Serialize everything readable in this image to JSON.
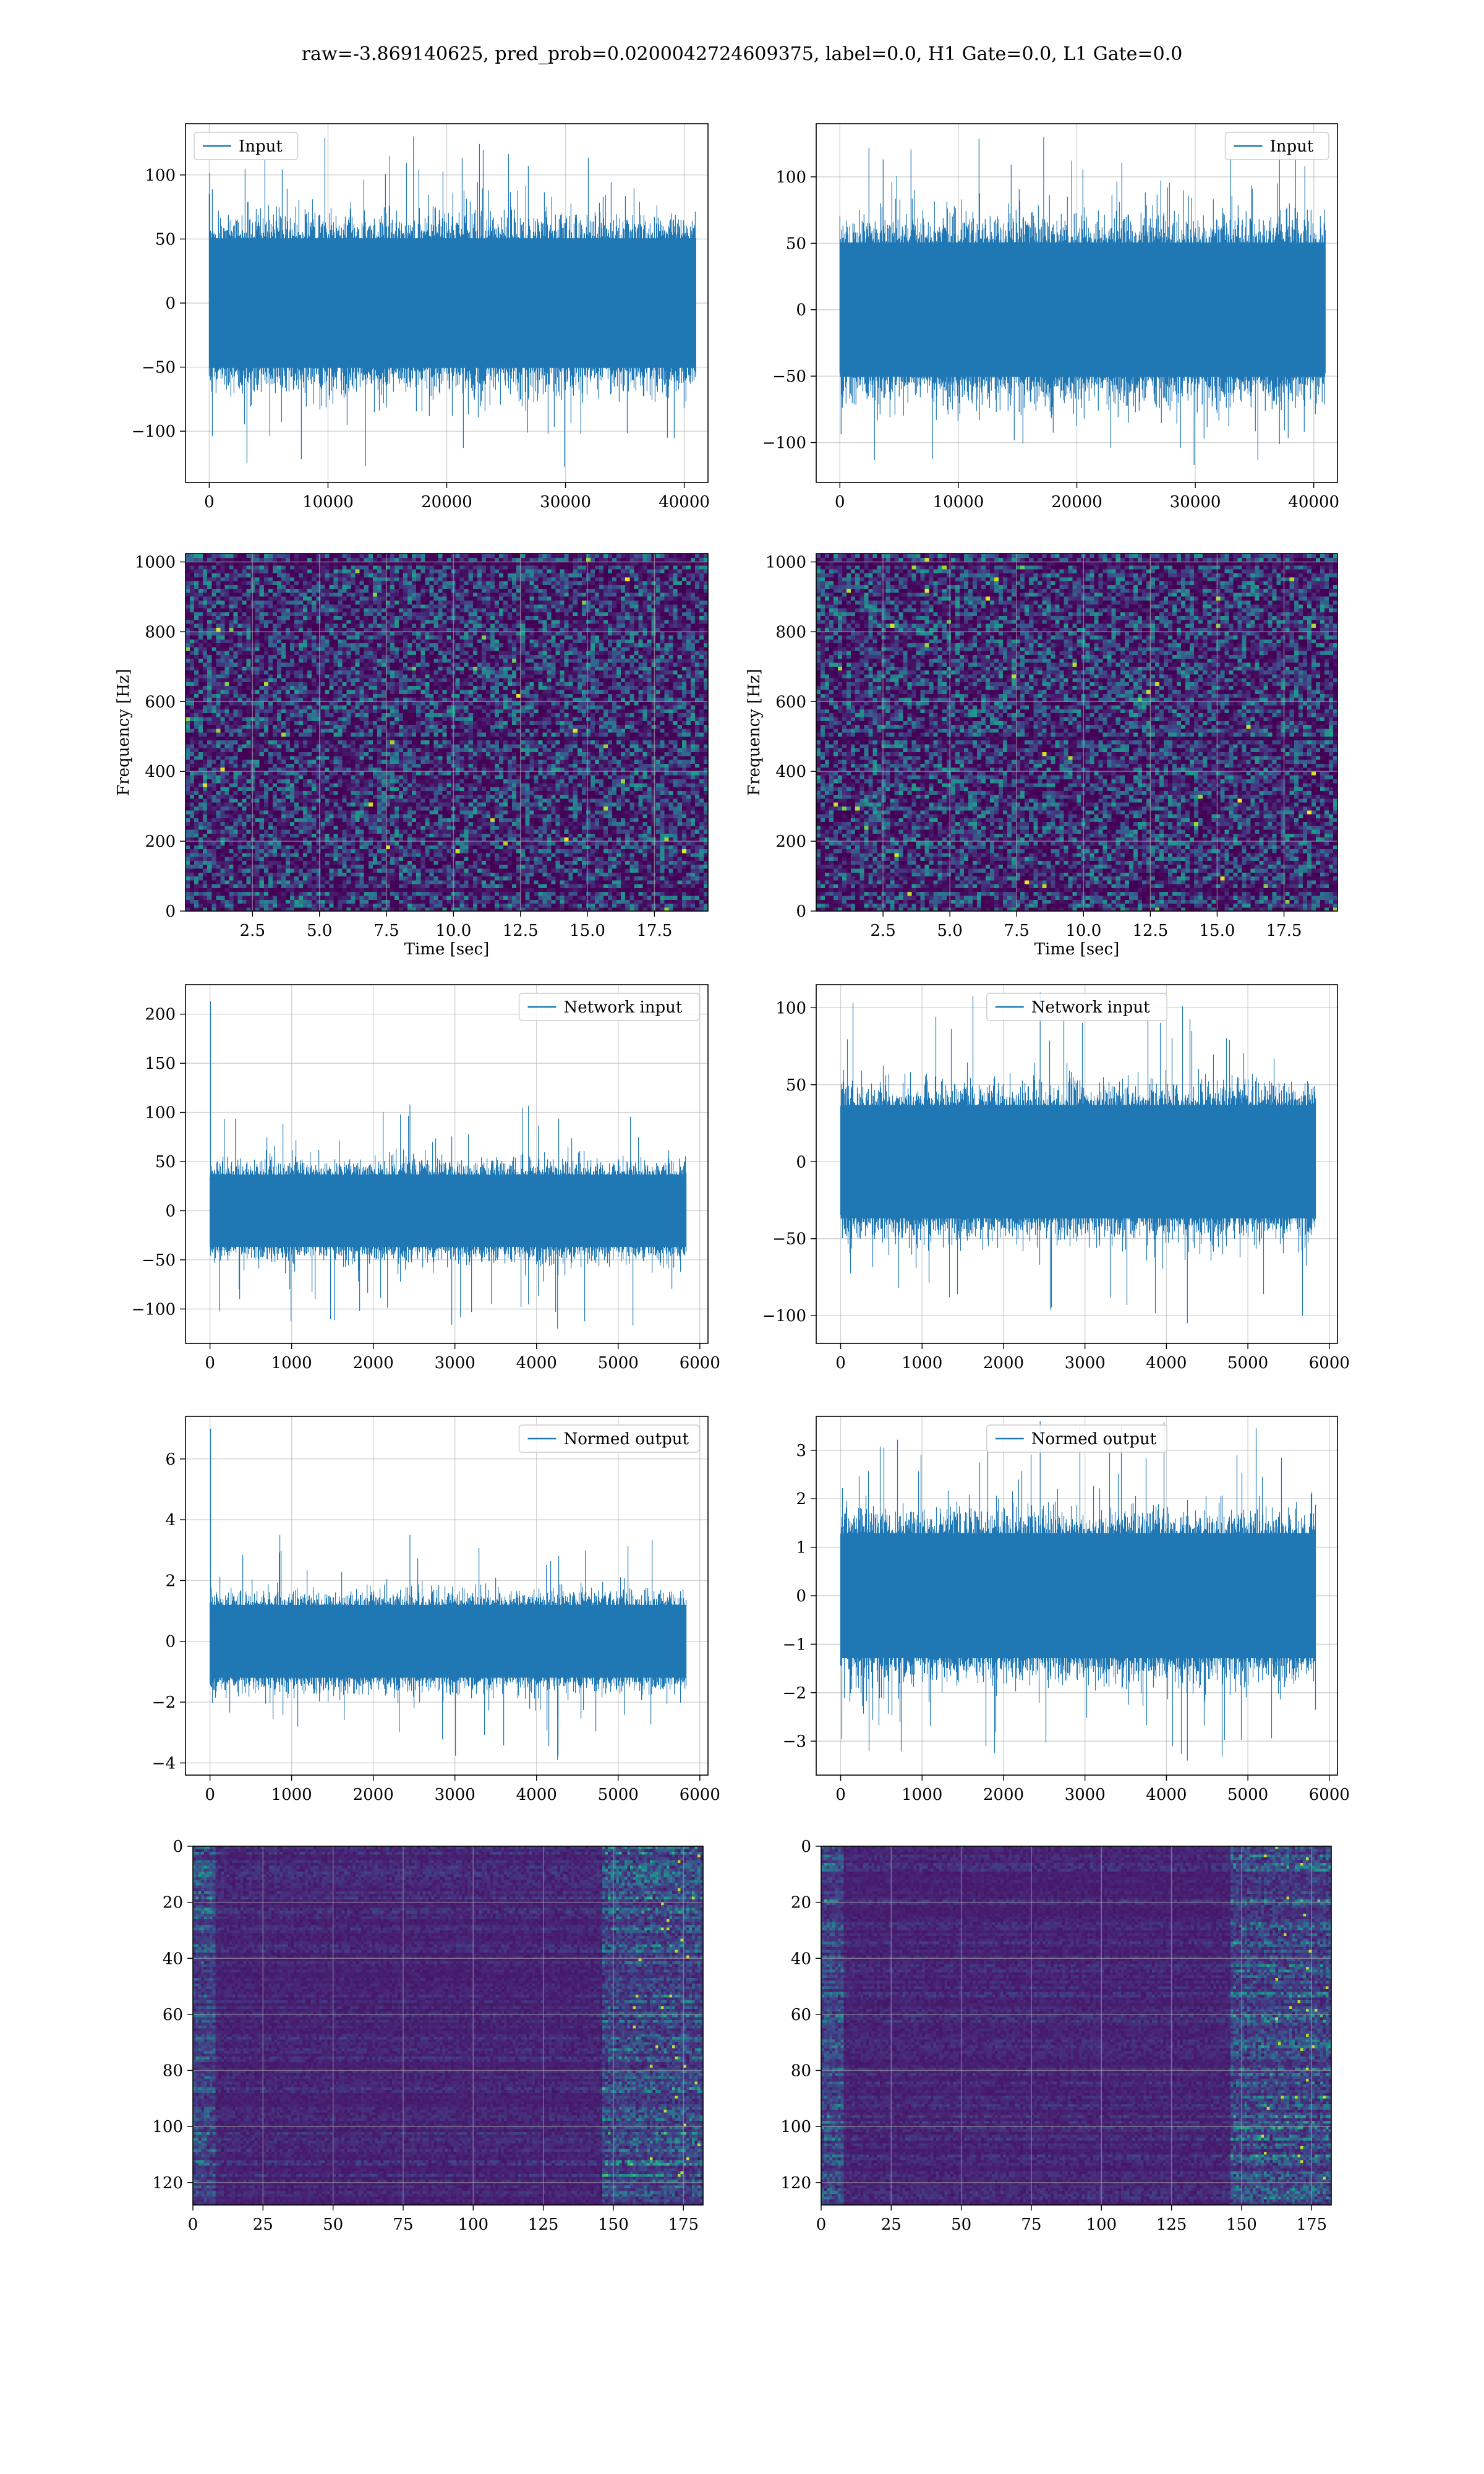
{
  "figure": {
    "title": "raw=-3.869140625, pred_prob=0.0200042724609375, label=0.0, H1 Gate=0.0, L1 Gate=0.0",
    "line_color": "#1f77b4",
    "grid_color": "#b0b0b0",
    "cmap_low": "#440154",
    "cmap_high": "#fde725"
  },
  "chart_data": [
    {
      "id": "r1c1",
      "type": "line",
      "legend": "Input",
      "legend_loc": "upper left",
      "xlim": [
        -2000,
        42000
      ],
      "ylim": [
        -140,
        140
      ],
      "xticks": [
        0,
        10000,
        20000,
        30000,
        40000
      ],
      "xtick_labels": [
        "0",
        "10000",
        "20000",
        "30000",
        "40000"
      ],
      "yticks": [
        -100,
        -50,
        0,
        50,
        100
      ],
      "ytick_labels": [
        "−100",
        "−50",
        "0",
        "50",
        "100"
      ],
      "x_range": [
        0,
        40960
      ],
      "amplitude": {
        "core": 55,
        "peak_max": 130,
        "peak_min": -128
      },
      "onset_spike": null
    },
    {
      "id": "r1c2",
      "type": "line",
      "legend": "Input",
      "legend_loc": "upper right",
      "xlim": [
        -2000,
        42000
      ],
      "ylim": [
        -130,
        140
      ],
      "xticks": [
        0,
        10000,
        20000,
        30000,
        40000
      ],
      "xtick_labels": [
        "0",
        "10000",
        "20000",
        "30000",
        "40000"
      ],
      "yticks": [
        -100,
        -50,
        0,
        50,
        100
      ],
      "ytick_labels": [
        "−100",
        "−50",
        "0",
        "50",
        "100"
      ],
      "x_range": [
        0,
        40960
      ],
      "amplitude": {
        "core": 55,
        "peak_max": 130,
        "peak_min": -117
      },
      "onset_spike": null
    },
    {
      "id": "r2c1",
      "type": "heatmap",
      "kind": "spectrogram",
      "xlabel": "Time [sec]",
      "ylabel": "Frequency [Hz]",
      "xlim": [
        0,
        19.5
      ],
      "ylim": [
        0,
        1024
      ],
      "xticks": [
        2.5,
        5.0,
        7.5,
        10.0,
        12.5,
        15.0,
        17.5
      ],
      "xtick_labels": [
        "2.5",
        "5.0",
        "7.5",
        "10.0",
        "12.5",
        "15.0",
        "17.5"
      ],
      "yticks": [
        0,
        200,
        400,
        600,
        800,
        1000
      ],
      "ytick_labels": [
        "0",
        "200",
        "400",
        "600",
        "800",
        "1000"
      ],
      "dark_bands_hz": [
        60,
        500,
        1000
      ]
    },
    {
      "id": "r2c2",
      "type": "heatmap",
      "kind": "spectrogram",
      "xlabel": "Time [sec]",
      "ylabel": "Frequency [Hz]",
      "xlim": [
        0,
        19.5
      ],
      "ylim": [
        0,
        1024
      ],
      "xticks": [
        2.5,
        5.0,
        7.5,
        10.0,
        12.5,
        15.0,
        17.5
      ],
      "xtick_labels": [
        "2.5",
        "5.0",
        "7.5",
        "10.0",
        "12.5",
        "15.0",
        "17.5"
      ],
      "yticks": [
        0,
        200,
        400,
        600,
        800,
        1000
      ],
      "ytick_labels": [
        "0",
        "200",
        "400",
        "600",
        "800",
        "1000"
      ],
      "dark_bands_hz": [
        60,
        500,
        1000
      ]
    },
    {
      "id": "r3c1",
      "type": "line",
      "legend": "Network input",
      "legend_loc": "upper right",
      "xlim": [
        -300,
        6100
      ],
      "ylim": [
        -135,
        230
      ],
      "xticks": [
        0,
        1000,
        2000,
        3000,
        4000,
        5000,
        6000
      ],
      "xtick_labels": [
        "0",
        "1000",
        "2000",
        "3000",
        "4000",
        "5000",
        "6000"
      ],
      "yticks": [
        -100,
        -50,
        0,
        50,
        100,
        150,
        200
      ],
      "ytick_labels": [
        "−100",
        "−50",
        "0",
        "50",
        "100",
        "150",
        "200"
      ],
      "x_range": [
        0,
        5832
      ],
      "amplitude": {
        "core": 40,
        "peak_max": 108,
        "peak_min": -120
      },
      "onset_spike": 213
    },
    {
      "id": "r3c2",
      "type": "line",
      "legend": "Network input",
      "legend_loc": "upper center",
      "xlim": [
        -300,
        6100
      ],
      "ylim": [
        -118,
        115
      ],
      "xticks": [
        0,
        1000,
        2000,
        3000,
        4000,
        5000,
        6000
      ],
      "xtick_labels": [
        "0",
        "1000",
        "2000",
        "3000",
        "4000",
        "5000",
        "6000"
      ],
      "yticks": [
        -100,
        -50,
        0,
        50,
        100
      ],
      "ytick_labels": [
        "−100",
        "−50",
        "0",
        "50",
        "100"
      ],
      "x_range": [
        0,
        5832
      ],
      "amplitude": {
        "core": 40,
        "peak_max": 110,
        "peak_min": -105
      },
      "onset_spike": null
    },
    {
      "id": "r4c1",
      "type": "line",
      "legend": "Normed output",
      "legend_loc": "upper right",
      "xlim": [
        -300,
        6100
      ],
      "ylim": [
        -4.4,
        7.4
      ],
      "xticks": [
        0,
        1000,
        2000,
        3000,
        4000,
        5000,
        6000
      ],
      "xtick_labels": [
        "0",
        "1000",
        "2000",
        "3000",
        "4000",
        "5000",
        "6000"
      ],
      "yticks": [
        -4,
        -2,
        0,
        2,
        4,
        6
      ],
      "ytick_labels": [
        "−4",
        "−2",
        "0",
        "2",
        "4",
        "6"
      ],
      "x_range": [
        0,
        5832
      ],
      "amplitude": {
        "core": 1.3,
        "peak_max": 3.5,
        "peak_min": -3.9
      },
      "onset_spike": 7.0
    },
    {
      "id": "r4c2",
      "type": "line",
      "legend": "Normed output",
      "legend_loc": "upper center",
      "xlim": [
        -300,
        6100
      ],
      "ylim": [
        -3.7,
        3.7
      ],
      "xticks": [
        0,
        1000,
        2000,
        3000,
        4000,
        5000,
        6000
      ],
      "xtick_labels": [
        "0",
        "1000",
        "2000",
        "3000",
        "4000",
        "5000",
        "6000"
      ],
      "yticks": [
        -3,
        -2,
        -1,
        0,
        1,
        2,
        3
      ],
      "ytick_labels": [
        "−3",
        "−2",
        "−1",
        "0",
        "1",
        "2",
        "3"
      ],
      "x_range": [
        0,
        5832
      ],
      "amplitude": {
        "core": 1.4,
        "peak_max": 3.6,
        "peak_min": -3.4
      },
      "onset_spike": null
    },
    {
      "id": "r5c1",
      "type": "heatmap",
      "kind": "feature-map",
      "xlim": [
        0,
        182
      ],
      "ylim": [
        128,
        0
      ],
      "xticks": [
        0,
        25,
        50,
        75,
        100,
        125,
        150,
        175
      ],
      "xtick_labels": [
        "0",
        "25",
        "50",
        "75",
        "100",
        "125",
        "150",
        "175"
      ],
      "yticks": [
        0,
        20,
        40,
        60,
        80,
        100,
        120
      ],
      "ytick_labels": [
        "0",
        "20",
        "40",
        "60",
        "80",
        "100",
        "120"
      ],
      "rows": 128,
      "cols": 182
    },
    {
      "id": "r5c2",
      "type": "heatmap",
      "kind": "feature-map",
      "xlim": [
        0,
        182
      ],
      "ylim": [
        128,
        0
      ],
      "xticks": [
        0,
        25,
        50,
        75,
        100,
        125,
        150,
        175
      ],
      "xtick_labels": [
        "0",
        "25",
        "50",
        "75",
        "100",
        "125",
        "150",
        "175"
      ],
      "yticks": [
        0,
        20,
        40,
        60,
        80,
        100,
        120
      ],
      "ytick_labels": [
        "0",
        "20",
        "40",
        "60",
        "80",
        "100",
        "120"
      ],
      "rows": 128,
      "cols": 182
    }
  ]
}
